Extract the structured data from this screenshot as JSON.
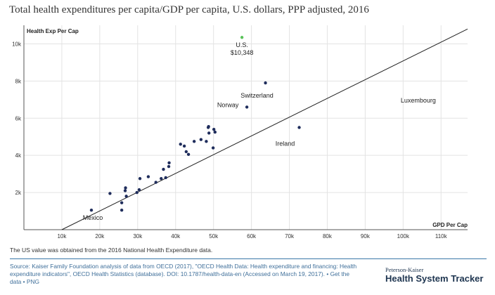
{
  "title": "Total health expenditures per capita/GDP per capita, U.S. dollars, PPP adjusted, 2016",
  "note": "The US value was obtained from the 2016 National Health Expenditure data.",
  "source": {
    "prefix": "Source: ",
    "text": "Kaiser Family Foundation analysis of data from OECD (2017), \"OECD Health Data: Health expenditure and financing: Health expenditure indicators\", OECD Health Statistics (database). DOI: 10.1787/health-data-en (Accessed on March 19, 2017). • ",
    "link_get_data": "Get the data",
    "sep": " • ",
    "link_png": "PNG"
  },
  "brand": {
    "small": "Peterson-Kaiser",
    "big": "Health System Tracker"
  },
  "colors": {
    "point": "#1f2d5c",
    "us_point": "#5ac35a",
    "grid": "#e3e3e3",
    "axis": "#555555",
    "trend": "#222222"
  },
  "chart_data": {
    "type": "scatter",
    "title": "Total health expenditures per capita/GDP per capita, U.S. dollars, PPP adjusted, 2016",
    "xlabel": "GPD Per Cap",
    "ylabel": "Health Exp Per Cap",
    "xlim": [
      0,
      117000
    ],
    "ylim": [
      0,
      11000
    ],
    "xticks": [
      10000,
      20000,
      30000,
      40000,
      50000,
      60000,
      70000,
      80000,
      90000,
      100000,
      110000
    ],
    "xtick_labels": [
      "10k",
      "20k",
      "30k",
      "40k",
      "50k",
      "60k",
      "70k",
      "80k",
      "90k",
      "100k",
      "110k"
    ],
    "yticks": [
      2000,
      4000,
      6000,
      8000,
      10000
    ],
    "ytick_labels": [
      "2k",
      "4k",
      "6k",
      "8k",
      "10k"
    ],
    "grid": true,
    "trendline": [
      [
        10000,
        0
      ],
      [
        117000,
        10800
      ]
    ],
    "points": [
      {
        "x": 57500,
        "y": 10348,
        "label": "U.S.\n$10,348",
        "highlight": true
      },
      {
        "x": 63700,
        "y": 7900,
        "label": "Switzerland"
      },
      {
        "x": 104000,
        "y": 7000,
        "label": "Luxembourg"
      },
      {
        "x": 58800,
        "y": 6600,
        "label": "Norway"
      },
      {
        "x": 72600,
        "y": 5500,
        "label": "Ireland"
      },
      {
        "x": 17800,
        "y": 1050,
        "label": "Mexico"
      },
      {
        "x": 22700,
        "y": 1950
      },
      {
        "x": 25800,
        "y": 1450
      },
      {
        "x": 25800,
        "y": 1050
      },
      {
        "x": 26700,
        "y": 2100
      },
      {
        "x": 26800,
        "y": 2250
      },
      {
        "x": 27000,
        "y": 1800
      },
      {
        "x": 29800,
        "y": 2000
      },
      {
        "x": 30400,
        "y": 2150
      },
      {
        "x": 30600,
        "y": 2750
      },
      {
        "x": 32800,
        "y": 2850
      },
      {
        "x": 34800,
        "y": 2550
      },
      {
        "x": 36200,
        "y": 2750
      },
      {
        "x": 36800,
        "y": 3250
      },
      {
        "x": 37400,
        "y": 2800
      },
      {
        "x": 38200,
        "y": 3400
      },
      {
        "x": 38300,
        "y": 3600
      },
      {
        "x": 41300,
        "y": 4600
      },
      {
        "x": 42300,
        "y": 4500
      },
      {
        "x": 42800,
        "y": 4200
      },
      {
        "x": 43400,
        "y": 4050
      },
      {
        "x": 44900,
        "y": 4750
      },
      {
        "x": 46700,
        "y": 4850
      },
      {
        "x": 48100,
        "y": 4750
      },
      {
        "x": 48600,
        "y": 5500
      },
      {
        "x": 48700,
        "y": 5550
      },
      {
        "x": 48800,
        "y": 5200
      },
      {
        "x": 49900,
        "y": 4400
      },
      {
        "x": 50100,
        "y": 5400
      },
      {
        "x": 50400,
        "y": 5250
      }
    ]
  }
}
